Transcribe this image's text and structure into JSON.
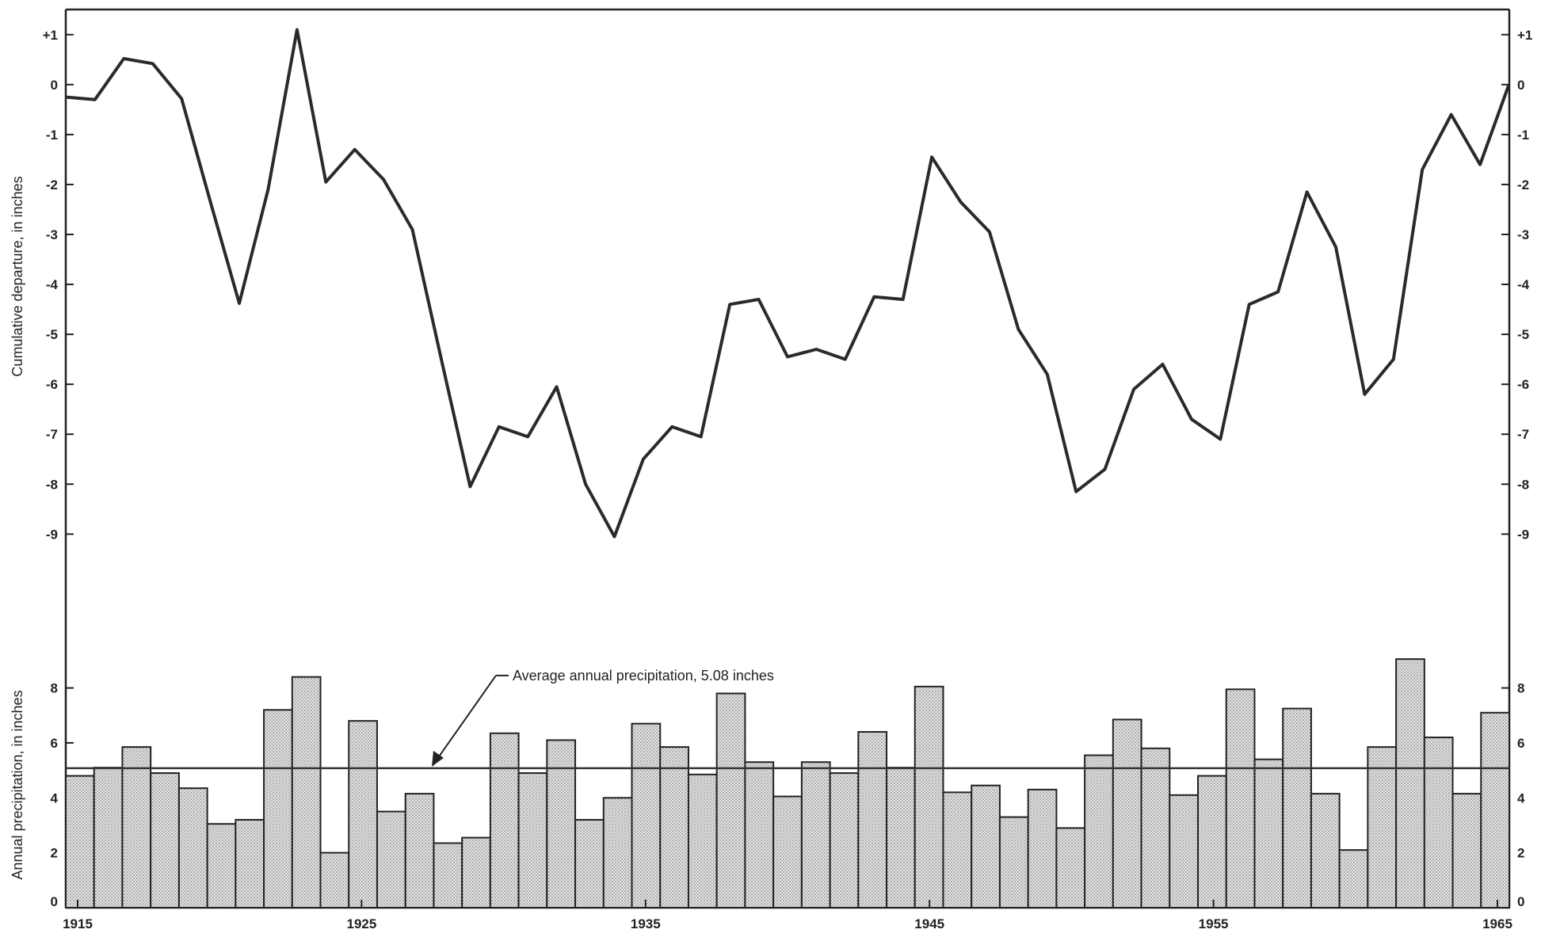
{
  "chart_data": [
    {
      "type": "line",
      "ylabel": "Cumulative departure, in inches",
      "ylim": [
        -10.2,
        1.25
      ],
      "yticks": [
        1,
        0,
        -1,
        -2,
        -3,
        -4,
        -5,
        -6,
        -7,
        -8,
        -9
      ],
      "ytick_labels": [
        "+1",
        "0",
        "-1",
        "-2",
        "-3",
        "-4",
        "-5",
        "-6",
        "-7",
        "-8",
        "-9"
      ],
      "x": [
        1915,
        1916,
        1917,
        1918,
        1919,
        1920,
        1921,
        1922,
        1923,
        1924,
        1925,
        1926,
        1927,
        1928,
        1929,
        1930,
        1931,
        1932,
        1933,
        1934,
        1935,
        1936,
        1937,
        1938,
        1939,
        1940,
        1941,
        1942,
        1943,
        1944,
        1945,
        1946,
        1947,
        1948,
        1949,
        1950,
        1951,
        1952,
        1953,
        1954,
        1955,
        1956,
        1957,
        1958,
        1959,
        1960,
        1961,
        1962,
        1963,
        1964,
        1965
      ],
      "values": [
        -0.25,
        -0.3,
        0.52,
        0.42,
        -0.28,
        -2.35,
        -4.38,
        -2.1,
        1.1,
        -1.95,
        -1.3,
        -1.9,
        -2.9,
        -5.5,
        -8.05,
        -6.85,
        -7.05,
        -6.05,
        -8.0,
        -9.05,
        -7.5,
        -6.85,
        -7.05,
        -4.4,
        -4.3,
        -5.45,
        -5.3,
        -5.5,
        -4.25,
        -4.3,
        -1.45,
        -2.35,
        -2.95,
        -4.9,
        -5.8,
        -8.15,
        -7.7,
        -6.1,
        -5.6,
        -6.7,
        -7.1,
        -4.4,
        -4.15,
        -2.15,
        -3.25,
        -6.2,
        -5.5,
        -1.7,
        -0.6,
        -1.6,
        0.0
      ]
    },
    {
      "type": "bar",
      "ylabel": "Annual precipitation, in inches",
      "ylim": [
        0,
        9.4
      ],
      "yticks": [
        0,
        2,
        4,
        6,
        8
      ],
      "ytick_labels": [
        "0",
        "2",
        "4",
        "6",
        "8"
      ],
      "x": [
        1915,
        1916,
        1917,
        1918,
        1919,
        1920,
        1921,
        1922,
        1923,
        1924,
        1925,
        1926,
        1927,
        1928,
        1929,
        1930,
        1931,
        1932,
        1933,
        1934,
        1935,
        1936,
        1937,
        1938,
        1939,
        1940,
        1941,
        1942,
        1943,
        1944,
        1945,
        1946,
        1947,
        1948,
        1949,
        1950,
        1951,
        1952,
        1953,
        1954,
        1955,
        1956,
        1957,
        1958,
        1959,
        1960,
        1961,
        1962,
        1963,
        1964,
        1965
      ],
      "values": [
        4.8,
        5.1,
        5.85,
        4.9,
        4.35,
        3.05,
        3.2,
        7.2,
        8.4,
        2.0,
        6.8,
        3.5,
        4.15,
        2.35,
        2.55,
        6.35,
        4.9,
        6.1,
        3.2,
        4.0,
        6.7,
        5.85,
        4.85,
        7.8,
        5.3,
        4.05,
        5.3,
        4.9,
        6.4,
        5.1,
        8.05,
        4.2,
        4.45,
        3.3,
        4.3,
        2.9,
        5.55,
        6.85,
        5.8,
        4.1,
        4.8,
        7.95,
        5.4,
        7.25,
        4.15,
        2.1,
        5.85,
        9.05,
        6.2,
        4.15,
        7.1
      ],
      "average": 5.08,
      "annotation": "Average annual precipitation, 5.08 inches"
    }
  ],
  "x_axis": {
    "tick_labels": [
      "1915",
      "1925",
      "1935",
      "1945",
      "1955",
      "1965"
    ],
    "tick_years": [
      1915,
      1925,
      1935,
      1945,
      1955,
      1965
    ]
  }
}
